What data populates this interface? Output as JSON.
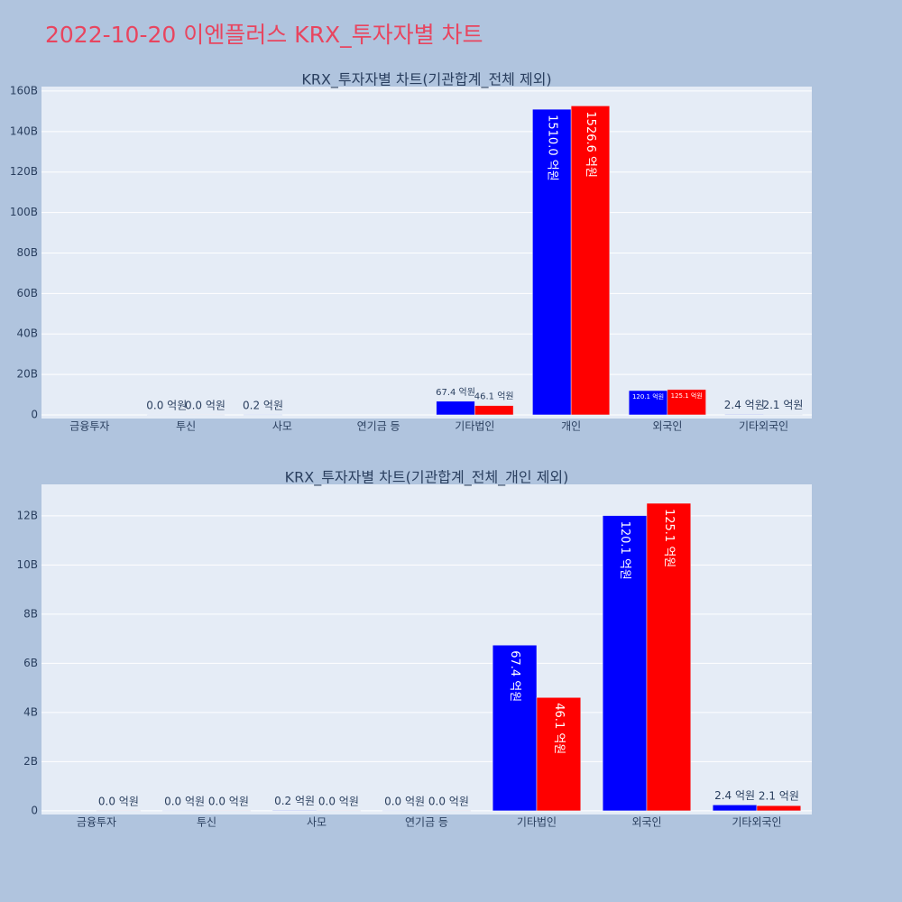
{
  "title": "2022-10-20 이엔플러스 KRX_투자자별 차트",
  "chart_data": [
    {
      "type": "bar",
      "title": "KRX_투자자별 차트(기관합계_전체 제외)",
      "categories": [
        "금융투자",
        "투신",
        "사모",
        "연기금 등",
        "기타법인",
        "개인",
        "외국인",
        "기타외국인"
      ],
      "series": [
        {
          "color": "#0000ff",
          "values": [
            null,
            0.0,
            0.02,
            null,
            6.74,
            151.0,
            12.01,
            0.24
          ],
          "value_labels": [
            null,
            "0.0 억원",
            "0.2 억원",
            null,
            "67.4 억원",
            "1510.0 억원",
            "120.1 억원",
            "2.4 억원"
          ]
        },
        {
          "color": "#ff0000",
          "values": [
            null,
            0.0,
            null,
            null,
            4.61,
            152.66,
            12.51,
            0.21
          ],
          "value_labels": [
            null,
            "0.0 억원",
            null,
            null,
            "46.1 억원",
            "1526.6 억원",
            "125.1 억원",
            "2.1 억원"
          ]
        }
      ],
      "ylim": [
        -1.8,
        162.2
      ],
      "yticks": [
        0,
        {
          "value": 20,
          "label": "20B"
        },
        {
          "value": 40,
          "label": "40B"
        },
        {
          "value": 60,
          "label": "60B"
        },
        {
          "value": 80,
          "label": "80B"
        },
        {
          "value": 100,
          "label": "100B"
        },
        {
          "value": 120,
          "label": "120B"
        },
        {
          "value": 140,
          "label": "140B"
        },
        {
          "value": 160,
          "label": "160B"
        }
      ],
      "grid": true
    },
    {
      "type": "bar",
      "title": "KRX_투자자별 차트(기관합계_전체_개인 제외)",
      "categories": [
        "금융투자",
        "투신",
        "사모",
        "연기금 등",
        "기타법인",
        "외국인",
        "기타외국인"
      ],
      "series": [
        {
          "color": "#0000ff",
          "values": [
            null,
            0.0,
            0.02,
            0.0,
            6.74,
            12.01,
            0.24
          ],
          "value_labels": [
            null,
            "0.0 억원",
            "0.2 억원",
            "0.0 억원",
            "67.4 억원",
            "120.1 억원",
            "2.4 억원"
          ]
        },
        {
          "color": "#ff0000",
          "values": [
            0.0,
            0.0,
            0.0,
            0.0,
            4.61,
            12.51,
            0.21
          ],
          "value_labels": [
            "0.0 억원",
            "0.0 억원",
            "0.0 억원",
            "0.0 억원",
            "46.1 억원",
            "125.1 억원",
            "2.1 억원"
          ]
        }
      ],
      "ylim": [
        -0.15,
        13.28
      ],
      "yticks": [
        0,
        {
          "value": 2,
          "label": "2B"
        },
        {
          "value": 4,
          "label": "4B"
        },
        {
          "value": 6,
          "label": "6B"
        },
        {
          "value": 8,
          "label": "8B"
        },
        {
          "value": 10,
          "label": "10B"
        },
        {
          "value": 12,
          "label": "12B"
        }
      ],
      "grid": true
    }
  ]
}
